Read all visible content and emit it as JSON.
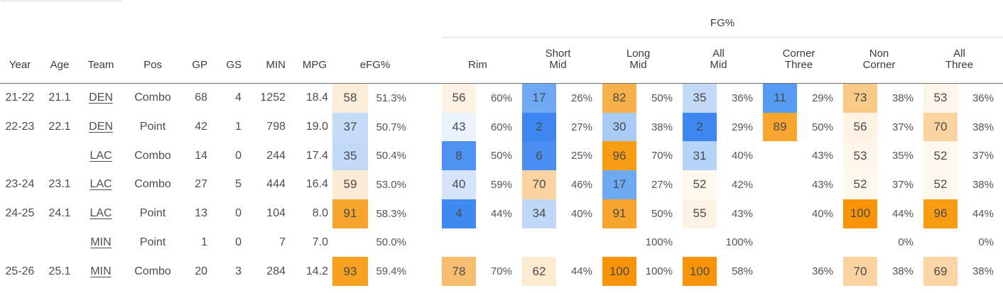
{
  "table": {
    "group_header": "FG%",
    "columns_left": [
      "Year",
      "Age",
      "Team",
      "Pos",
      "GP",
      "GS",
      "MIN",
      "MPG",
      "eFG%"
    ],
    "fg_columns": [
      {
        "key": "rim",
        "lines": [
          "Rim"
        ]
      },
      {
        "key": "short_mid",
        "lines": [
          "Short",
          "Mid"
        ]
      },
      {
        "key": "long_mid",
        "lines": [
          "Long",
          "Mid"
        ]
      },
      {
        "key": "all_mid",
        "lines": [
          "All",
          "Mid"
        ]
      },
      {
        "key": "corner_three",
        "lines": [
          "Corner",
          "Three"
        ]
      },
      {
        "key": "non_corner",
        "lines": [
          "Non",
          "Corner"
        ]
      },
      {
        "key": "all_three",
        "lines": [
          "All",
          "Three"
        ]
      }
    ],
    "rows": [
      {
        "year": "21-22",
        "age": "21.1",
        "team": "DEN",
        "pos": "Combo",
        "gp": "68",
        "gs": "4",
        "min": "1252",
        "mpg": "18.4",
        "efg": {
          "p": "58",
          "bg": "#FCEDD8",
          "v": "51.3%"
        },
        "fg": [
          {
            "p": "56",
            "bg": "#FDF2E3",
            "v": "60%"
          },
          {
            "p": "17",
            "bg": "#6FA9F4",
            "v": "26%"
          },
          {
            "p": "82",
            "bg": "#F7B04B",
            "v": "50%"
          },
          {
            "p": "35",
            "bg": "#C2DAF8",
            "v": "36%"
          },
          {
            "p": "11",
            "bg": "#559AF3",
            "v": "29%"
          },
          {
            "p": "73",
            "bg": "#F9C987",
            "v": "38%"
          },
          {
            "p": "53",
            "bg": "#FEF6EA",
            "v": "36%"
          }
        ]
      },
      {
        "year": "22-23",
        "age": "22.1",
        "team": "DEN",
        "pos": "Point",
        "gp": "42",
        "gs": "1",
        "min": "798",
        "mpg": "19.0",
        "efg": {
          "p": "37",
          "bg": "#C5DCF8",
          "v": "50.7%"
        },
        "fg": [
          {
            "p": "43",
            "bg": "#EAF2FD",
            "v": "60%"
          },
          {
            "p": "2",
            "bg": "#3E86F0",
            "v": "27%"
          },
          {
            "p": "30",
            "bg": "#A8CBF7",
            "v": "38%"
          },
          {
            "p": "2",
            "bg": "#3E86F0",
            "v": "29%"
          },
          {
            "p": "89",
            "bg": "#F8A62E",
            "v": "50%"
          },
          {
            "p": "56",
            "bg": "#FDF2E3",
            "v": "37%"
          },
          {
            "p": "70",
            "bg": "#FAD3A1",
            "v": "38%"
          }
        ]
      },
      {
        "year": "",
        "age": "",
        "team": "LAC",
        "pos": "Combo",
        "gp": "14",
        "gs": "0",
        "min": "244",
        "mpg": "17.4",
        "efg": {
          "p": "35",
          "bg": "#C2DAF8",
          "v": "50.4%"
        },
        "fg": [
          {
            "p": "8",
            "bg": "#4D91F1",
            "v": "50%"
          },
          {
            "p": "6",
            "bg": "#4A8EF1",
            "v": "25%"
          },
          {
            "p": "96",
            "bg": "#F89C14",
            "v": "70%"
          },
          {
            "p": "31",
            "bg": "#B5D2F8",
            "v": "40%"
          },
          {
            "p": "",
            "bg": "",
            "v": "43%"
          },
          {
            "p": "53",
            "bg": "#FEF6EA",
            "v": "35%"
          },
          {
            "p": "52",
            "bg": "#FEF8EF",
            "v": "37%"
          }
        ]
      },
      {
        "year": "23-24",
        "age": "23.1",
        "team": "LAC",
        "pos": "Combo",
        "gp": "27",
        "gs": "5",
        "min": "444",
        "mpg": "16.4",
        "efg": {
          "p": "59",
          "bg": "#FCEBD4",
          "v": "53.0%"
        },
        "fg": [
          {
            "p": "40",
            "bg": "#D5E4FA",
            "v": "59%"
          },
          {
            "p": "70",
            "bg": "#FAD3A1",
            "v": "46%"
          },
          {
            "p": "17",
            "bg": "#6FA9F4",
            "v": "27%"
          },
          {
            "p": "52",
            "bg": "#FEF8EF",
            "v": "42%"
          },
          {
            "p": "",
            "bg": "",
            "v": "43%"
          },
          {
            "p": "52",
            "bg": "#FEF8EF",
            "v": "37%"
          },
          {
            "p": "52",
            "bg": "#FEF8EF",
            "v": "38%"
          }
        ]
      },
      {
        "year": "24-25",
        "age": "24.1",
        "team": "LAC",
        "pos": "Point",
        "gp": "13",
        "gs": "0",
        "min": "104",
        "mpg": "8.0",
        "efg": {
          "p": "91",
          "bg": "#F7A52E",
          "v": "58.3%"
        },
        "fg": [
          {
            "p": "4",
            "bg": "#4089F0",
            "v": "44%"
          },
          {
            "p": "34",
            "bg": "#BFD8F8",
            "v": "40%"
          },
          {
            "p": "91",
            "bg": "#F7A52E",
            "v": "50%"
          },
          {
            "p": "55",
            "bg": "#FDF3E4",
            "v": "43%"
          },
          {
            "p": "",
            "bg": "",
            "v": "40%"
          },
          {
            "p": "100",
            "bg": "#F89406",
            "v": "44%"
          },
          {
            "p": "96",
            "bg": "#F89C14",
            "v": "44%"
          }
        ]
      },
      {
        "year": "",
        "age": "",
        "team": "MIN",
        "pos": "Point",
        "gp": "1",
        "gs": "0",
        "min": "7",
        "mpg": "7.0",
        "efg": {
          "p": "",
          "bg": "",
          "v": "50.0%"
        },
        "fg": [
          {
            "p": "",
            "bg": "",
            "v": ""
          },
          {
            "p": "",
            "bg": "",
            "v": ""
          },
          {
            "p": "",
            "bg": "",
            "v": "100%"
          },
          {
            "p": "",
            "bg": "",
            "v": "100%"
          },
          {
            "p": "",
            "bg": "",
            "v": ""
          },
          {
            "p": "",
            "bg": "",
            "v": "0%"
          },
          {
            "p": "",
            "bg": "",
            "v": "0%"
          }
        ]
      },
      {
        "year": "25-26",
        "age": "25.1",
        "team": "MIN",
        "pos": "Combo",
        "gp": "20",
        "gs": "3",
        "min": "284",
        "mpg": "14.2",
        "efg": {
          "p": "93",
          "bg": "#F8A01F",
          "v": "59.4%"
        },
        "fg": [
          {
            "p": "78",
            "bg": "#F8BE70",
            "v": "70%"
          },
          {
            "p": "62",
            "bg": "#FCEAD1",
            "v": "44%"
          },
          {
            "p": "100",
            "bg": "#F89406",
            "v": "100%"
          },
          {
            "p": "100",
            "bg": "#F89406",
            "v": "58%"
          },
          {
            "p": "",
            "bg": "",
            "v": "36%"
          },
          {
            "p": "70",
            "bg": "#FAD3A1",
            "v": "38%"
          },
          {
            "p": "69",
            "bg": "#FBD5A6",
            "v": "38%"
          }
        ]
      }
    ]
  },
  "colors": {
    "scale_low_blue": "#3E86F0",
    "scale_mid_white": "#FFFFFF",
    "scale_high_orange": "#F89406",
    "header_rule": "#6F6F6F",
    "group_rule": "#DCDCDC",
    "text_primary": "#4D4D4D",
    "text_secondary": "#555555"
  }
}
